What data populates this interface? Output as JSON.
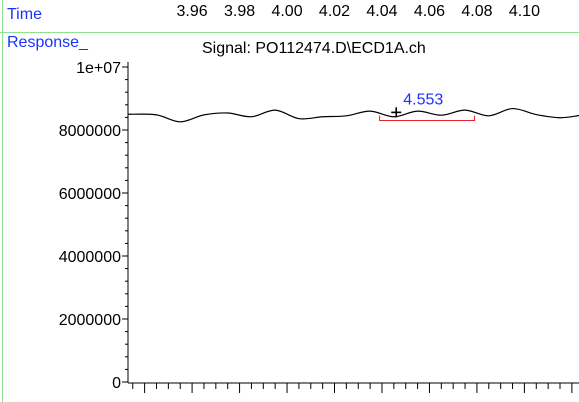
{
  "header": {
    "time_label": "Time",
    "response_label": "Response_",
    "signal_title": "Signal: PO112474.D\\ECD1A.ch"
  },
  "time_ticks": [
    "3.96",
    "3.98",
    "4.00",
    "4.02",
    "4.04",
    "4.06",
    "4.08",
    "4.10"
  ],
  "chart_data": {
    "type": "line",
    "title": "Signal: PO112474.D\\ECD1A.ch",
    "xlabel": "Time",
    "ylabel": "Response_",
    "xlim": [
      3.933,
      4.123
    ],
    "ylim": [
      0,
      10000000
    ],
    "y_tick_labels": [
      "0",
      "2000000",
      "4000000",
      "6000000",
      "8000000",
      "1e+07"
    ],
    "y_tick_values": [
      0,
      2000000,
      4000000,
      6000000,
      8000000,
      10000000
    ],
    "x_tick_labels": [
      "3.96",
      "3.98",
      "4.00",
      "4.02",
      "4.04",
      "4.06",
      "4.08",
      "4.10"
    ],
    "x_tick_values": [
      3.96,
      3.98,
      4.0,
      4.02,
      4.04,
      4.06,
      4.08,
      4.1
    ],
    "grid": false,
    "series": [
      {
        "color": "#000000",
        "x": [
          3.933,
          3.945,
          3.955,
          3.965,
          3.975,
          3.985,
          3.995,
          4.005,
          4.015,
          4.025,
          4.035,
          4.045,
          4.055,
          4.065,
          4.075,
          4.085,
          4.095,
          4.105,
          4.115,
          4.123
        ],
        "y": [
          8500000,
          8480000,
          8260000,
          8480000,
          8540000,
          8420000,
          8630000,
          8360000,
          8420000,
          8450000,
          8600000,
          8420000,
          8600000,
          8470000,
          8630000,
          8450000,
          8680000,
          8490000,
          8390000,
          8460000
        ]
      }
    ],
    "annotations": [
      {
        "label": "4.553",
        "x": 4.046,
        "y": 8560000,
        "color": "#1a32ff"
      }
    ],
    "integration_baseline": {
      "x_start": 4.039,
      "x_end": 4.079,
      "y": 8300000,
      "color": "#e8202a"
    }
  }
}
